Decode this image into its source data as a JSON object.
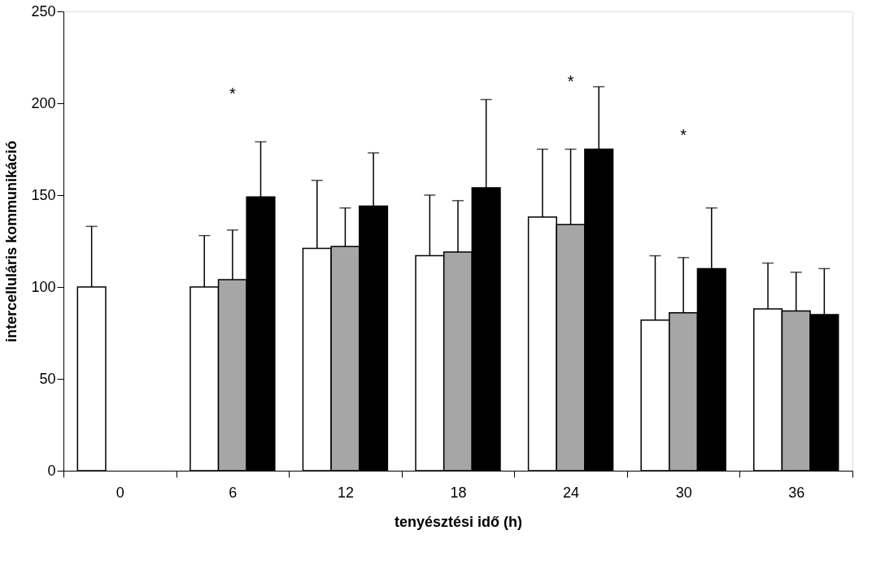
{
  "chart_data": {
    "type": "bar",
    "xlabel": "tenyésztési idő (h)",
    "ylabel": "intercelluláris kommunikáció",
    "categories": [
      "0",
      "6",
      "12",
      "18",
      "24",
      "30",
      "36"
    ],
    "series": [
      {
        "color": "#ffffff",
        "values": [
          100,
          100,
          121,
          117,
          138,
          82,
          88
        ],
        "errors": [
          [
            100,
            133
          ],
          [
            100,
            128
          ],
          [
            121,
            158
          ],
          [
            117,
            150
          ],
          [
            138,
            175
          ],
          [
            82,
            117
          ],
          [
            88,
            113
          ]
        ]
      },
      {
        "color": "#a6a6a6",
        "values": [
          null,
          104,
          122,
          119,
          134,
          86,
          87
        ],
        "errors": [
          null,
          [
            104,
            131
          ],
          [
            122,
            143
          ],
          [
            119,
            147
          ],
          [
            134,
            175
          ],
          [
            86,
            116
          ],
          [
            87,
            108
          ]
        ]
      },
      {
        "color": "#000000",
        "values": [
          null,
          149,
          144,
          154,
          175,
          110,
          85
        ],
        "errors": [
          null,
          [
            149,
            179
          ],
          [
            144,
            173
          ],
          [
            154,
            202
          ],
          [
            175,
            209
          ],
          [
            110,
            143
          ],
          [
            85,
            110
          ]
        ]
      }
    ],
    "ylim": [
      0,
      250
    ],
    "yticks": [
      0,
      50,
      100,
      150,
      200,
      250
    ],
    "grid": false,
    "legend": false,
    "annotations": [
      "*",
      "*",
      "*"
    ]
  }
}
